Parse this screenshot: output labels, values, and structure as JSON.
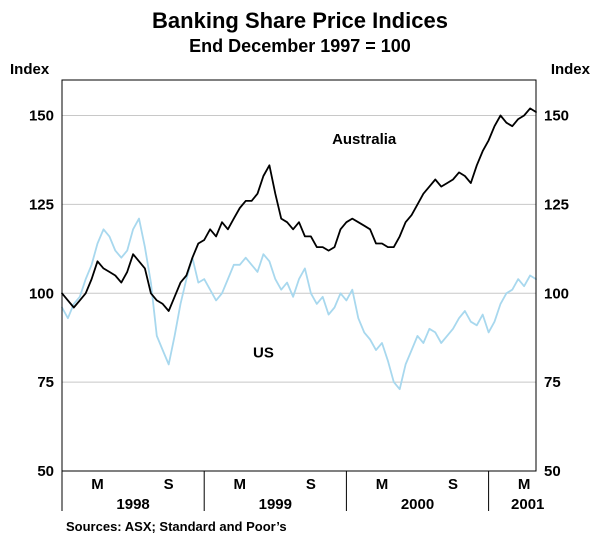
{
  "chart_data": {
    "type": "line",
    "title": "Banking Share Price Indices",
    "subtitle": "End December 1997 = 100",
    "ylabel_left": "Index",
    "ylabel_right": "Index",
    "ylim": [
      50,
      160
    ],
    "yticks": [
      50,
      75,
      100,
      125,
      150
    ],
    "x_range": [
      0,
      40
    ],
    "x_unit": "months since end December 1997",
    "x_month_ticks": [
      {
        "x": 3,
        "label": "M"
      },
      {
        "x": 9,
        "label": "S"
      },
      {
        "x": 15,
        "label": "M"
      },
      {
        "x": 21,
        "label": "S"
      },
      {
        "x": 27,
        "label": "M"
      },
      {
        "x": 33,
        "label": "S"
      },
      {
        "x": 39,
        "label": "M"
      }
    ],
    "x_year_labels": [
      {
        "x": 6,
        "label": "1998"
      },
      {
        "x": 18,
        "label": "1999"
      },
      {
        "x": 30,
        "label": "2000"
      },
      {
        "x": 39.3,
        "label": "2001"
      }
    ],
    "x_year_dividers": [
      0,
      12,
      24,
      36
    ],
    "series": [
      {
        "name": "Australia",
        "color": "#000000",
        "label_at": {
          "x": 25.5,
          "y": 142
        },
        "points": [
          [
            0,
            100
          ],
          [
            0.5,
            98
          ],
          [
            1,
            96
          ],
          [
            1.5,
            98
          ],
          [
            2,
            100
          ],
          [
            2.5,
            104
          ],
          [
            3,
            109
          ],
          [
            3.5,
            107
          ],
          [
            4,
            106
          ],
          [
            4.5,
            105
          ],
          [
            5,
            103
          ],
          [
            5.5,
            106
          ],
          [
            6,
            111
          ],
          [
            6.5,
            109
          ],
          [
            7,
            107
          ],
          [
            7.5,
            100
          ],
          [
            8,
            98
          ],
          [
            8.5,
            97
          ],
          [
            9,
            95
          ],
          [
            9.5,
            99
          ],
          [
            10,
            103
          ],
          [
            10.5,
            105
          ],
          [
            11,
            110
          ],
          [
            11.5,
            114
          ],
          [
            12,
            115
          ],
          [
            12.5,
            118
          ],
          [
            13,
            116
          ],
          [
            13.5,
            120
          ],
          [
            14,
            118
          ],
          [
            14.5,
            121
          ],
          [
            15,
            124
          ],
          [
            15.5,
            126
          ],
          [
            16,
            126
          ],
          [
            16.5,
            128
          ],
          [
            17,
            133
          ],
          [
            17.5,
            136
          ],
          [
            18,
            128
          ],
          [
            18.5,
            121
          ],
          [
            19,
            120
          ],
          [
            19.5,
            118
          ],
          [
            20,
            120
          ],
          [
            20.5,
            116
          ],
          [
            21,
            116
          ],
          [
            21.5,
            113
          ],
          [
            22,
            113
          ],
          [
            22.5,
            112
          ],
          [
            23,
            113
          ],
          [
            23.5,
            118
          ],
          [
            24,
            120
          ],
          [
            24.5,
            121
          ],
          [
            25,
            120
          ],
          [
            25.5,
            119
          ],
          [
            26,
            118
          ],
          [
            26.5,
            114
          ],
          [
            27,
            114
          ],
          [
            27.5,
            113
          ],
          [
            28,
            113
          ],
          [
            28.5,
            116
          ],
          [
            29,
            120
          ],
          [
            29.5,
            122
          ],
          [
            30,
            125
          ],
          [
            30.5,
            128
          ],
          [
            31,
            130
          ],
          [
            31.5,
            132
          ],
          [
            32,
            130
          ],
          [
            32.5,
            131
          ],
          [
            33,
            132
          ],
          [
            33.5,
            134
          ],
          [
            34,
            133
          ],
          [
            34.5,
            131
          ],
          [
            35,
            136
          ],
          [
            35.5,
            140
          ],
          [
            36,
            143
          ],
          [
            36.5,
            147
          ],
          [
            37,
            150
          ],
          [
            37.5,
            148
          ],
          [
            38,
            147
          ],
          [
            38.5,
            149
          ],
          [
            39,
            150
          ],
          [
            39.5,
            152
          ],
          [
            40,
            151
          ]
        ]
      },
      {
        "name": "US",
        "color": "#a8d8ee",
        "label_at": {
          "x": 17,
          "y": 82
        },
        "points": [
          [
            0,
            96
          ],
          [
            0.5,
            93
          ],
          [
            1,
            97
          ],
          [
            1.5,
            99
          ],
          [
            2,
            104
          ],
          [
            2.5,
            108
          ],
          [
            3,
            114
          ],
          [
            3.5,
            118
          ],
          [
            4,
            116
          ],
          [
            4.5,
            112
          ],
          [
            5,
            110
          ],
          [
            5.5,
            112
          ],
          [
            6,
            118
          ],
          [
            6.5,
            121
          ],
          [
            7,
            113
          ],
          [
            7.5,
            103
          ],
          [
            8,
            88
          ],
          [
            8.5,
            84
          ],
          [
            9,
            80
          ],
          [
            9.5,
            88
          ],
          [
            10,
            97
          ],
          [
            10.5,
            104
          ],
          [
            11,
            110
          ],
          [
            11.5,
            103
          ],
          [
            12,
            104
          ],
          [
            12.5,
            101
          ],
          [
            13,
            98
          ],
          [
            13.5,
            100
          ],
          [
            14,
            104
          ],
          [
            14.5,
            108
          ],
          [
            15,
            108
          ],
          [
            15.5,
            110
          ],
          [
            16,
            108
          ],
          [
            16.5,
            106
          ],
          [
            17,
            111
          ],
          [
            17.5,
            109
          ],
          [
            18,
            104
          ],
          [
            18.5,
            101
          ],
          [
            19,
            103
          ],
          [
            19.5,
            99
          ],
          [
            20,
            104
          ],
          [
            20.5,
            107
          ],
          [
            21,
            100
          ],
          [
            21.5,
            97
          ],
          [
            22,
            99
          ],
          [
            22.5,
            94
          ],
          [
            23,
            96
          ],
          [
            23.5,
            100
          ],
          [
            24,
            98
          ],
          [
            24.5,
            101
          ],
          [
            25,
            93
          ],
          [
            25.5,
            89
          ],
          [
            26,
            87
          ],
          [
            26.5,
            84
          ],
          [
            27,
            86
          ],
          [
            27.5,
            81
          ],
          [
            28,
            75
          ],
          [
            28.5,
            73
          ],
          [
            29,
            80
          ],
          [
            29.5,
            84
          ],
          [
            30,
            88
          ],
          [
            30.5,
            86
          ],
          [
            31,
            90
          ],
          [
            31.5,
            89
          ],
          [
            32,
            86
          ],
          [
            32.5,
            88
          ],
          [
            33,
            90
          ],
          [
            33.5,
            93
          ],
          [
            34,
            95
          ],
          [
            34.5,
            92
          ],
          [
            35,
            91
          ],
          [
            35.5,
            94
          ],
          [
            36,
            89
          ],
          [
            36.5,
            92
          ],
          [
            37,
            97
          ],
          [
            37.5,
            100
          ],
          [
            38,
            101
          ],
          [
            38.5,
            104
          ],
          [
            39,
            102
          ],
          [
            39.5,
            105
          ],
          [
            40,
            104
          ]
        ]
      }
    ],
    "source_note": "Sources: ASX; Standard and Poor’s"
  }
}
